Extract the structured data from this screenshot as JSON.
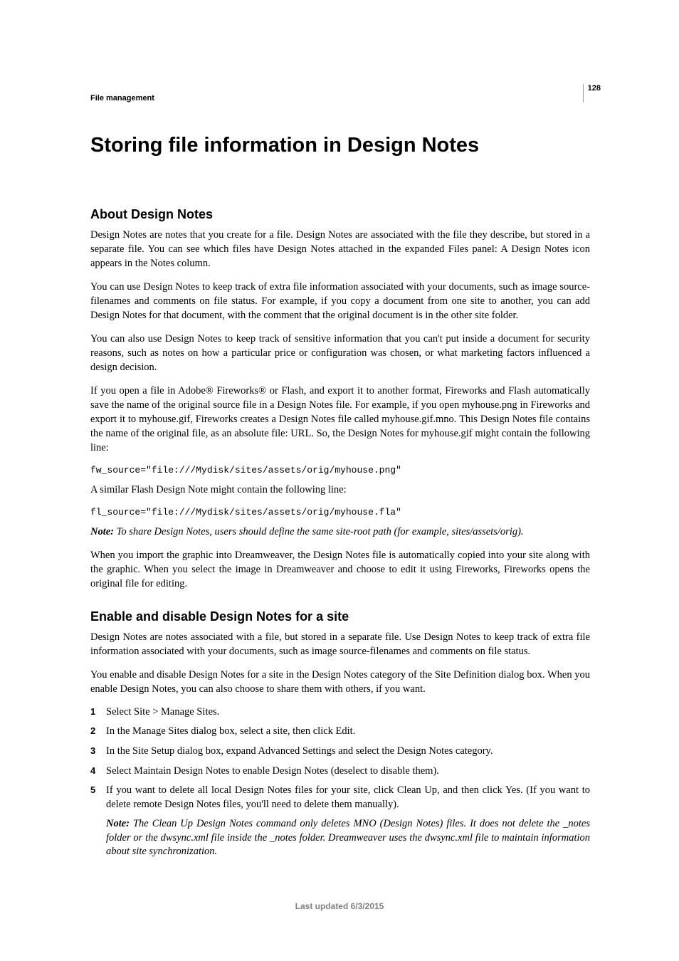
{
  "page_number": "128",
  "running_head": "File management",
  "title": "Storing file information in Design Notes",
  "sec1": {
    "heading": "About Design Notes",
    "p1": "Design Notes are notes that you create for a file. Design Notes are associated with the file they describe, but stored in a separate file. You can see which files have Design Notes attached in the expanded Files panel: A Design Notes icon appears in the Notes column.",
    "p2": "You can use Design Notes to keep track of extra file information associated with your documents, such as image source-filenames and comments on file status. For example, if you copy a document from one site to another, you can add Design Notes for that document, with the comment that the original document is in the other site folder.",
    "p3": "You can also use Design Notes to keep track of sensitive information that you can't put inside a document for security reasons, such as notes on how a particular price or configuration was chosen, or what marketing factors influenced a design decision.",
    "p4": "If you open a file in Adobe® Fireworks® or Flash, and export it to another format, Fireworks and Flash automatically save the name of the original source file in a Design Notes file. For example, if you open myhouse.png in Fireworks and export it to myhouse.gif, Fireworks creates a Design Notes file called myhouse.gif.mno. This Design Notes file contains the name of the original file, as an absolute file: URL. So, the Design Notes for myhouse.gif might contain the following line:",
    "code1": "fw_source=\"file:///Mydisk/sites/assets/orig/myhouse.png\"",
    "p5": "A similar Flash Design Note might contain the following line:",
    "code2": "fl_source=\"file:///Mydisk/sites/assets/orig/myhouse.fla\"",
    "note_label": "Note: ",
    "note_body": "To share Design Notes, users should define the same site-root path (for example, sites/assets/orig).",
    "p6": "When you import the graphic into Dreamweaver, the Design Notes file is automatically copied into your site along with the graphic. When you select the image in Dreamweaver and choose to edit it using Fireworks, Fireworks opens the original file for editing."
  },
  "sec2": {
    "heading": "Enable and disable Design Notes for a site",
    "p1": "Design Notes are notes associated with a file, but stored in a separate file. Use Design Notes to keep track of extra file information associated with your documents, such as image source-filenames and comments on file status.",
    "p2": "You enable and disable Design Notes for a site in the Design Notes category of the Site Definition dialog box. When you enable Design Notes, you can also choose to share them with others, if you want.",
    "li1": "Select Site > Manage Sites.",
    "li2": "In the Manage Sites dialog box, select a site, then click Edit.",
    "li3": "In the Site Setup dialog box, expand Advanced Settings and select the Design Notes category.",
    "li4": "Select Maintain Design Notes to enable Design Notes (deselect to disable them).",
    "li5": "If you want to delete all local Design Notes files for your site, click Clean Up, and then click Yes. (If you want to delete remote Design Notes files, you'll need to delete them manually).",
    "li5_note_label": "Note: ",
    "li5_note_body": "The Clean Up Design Notes command only deletes MNO (Design Notes) files. It does not delete the _notes folder or the dwsync.xml file inside the _notes folder. Dreamweaver uses the dwsync.xml file to maintain information about site synchronization."
  },
  "footer": "Last updated 6/3/2015"
}
